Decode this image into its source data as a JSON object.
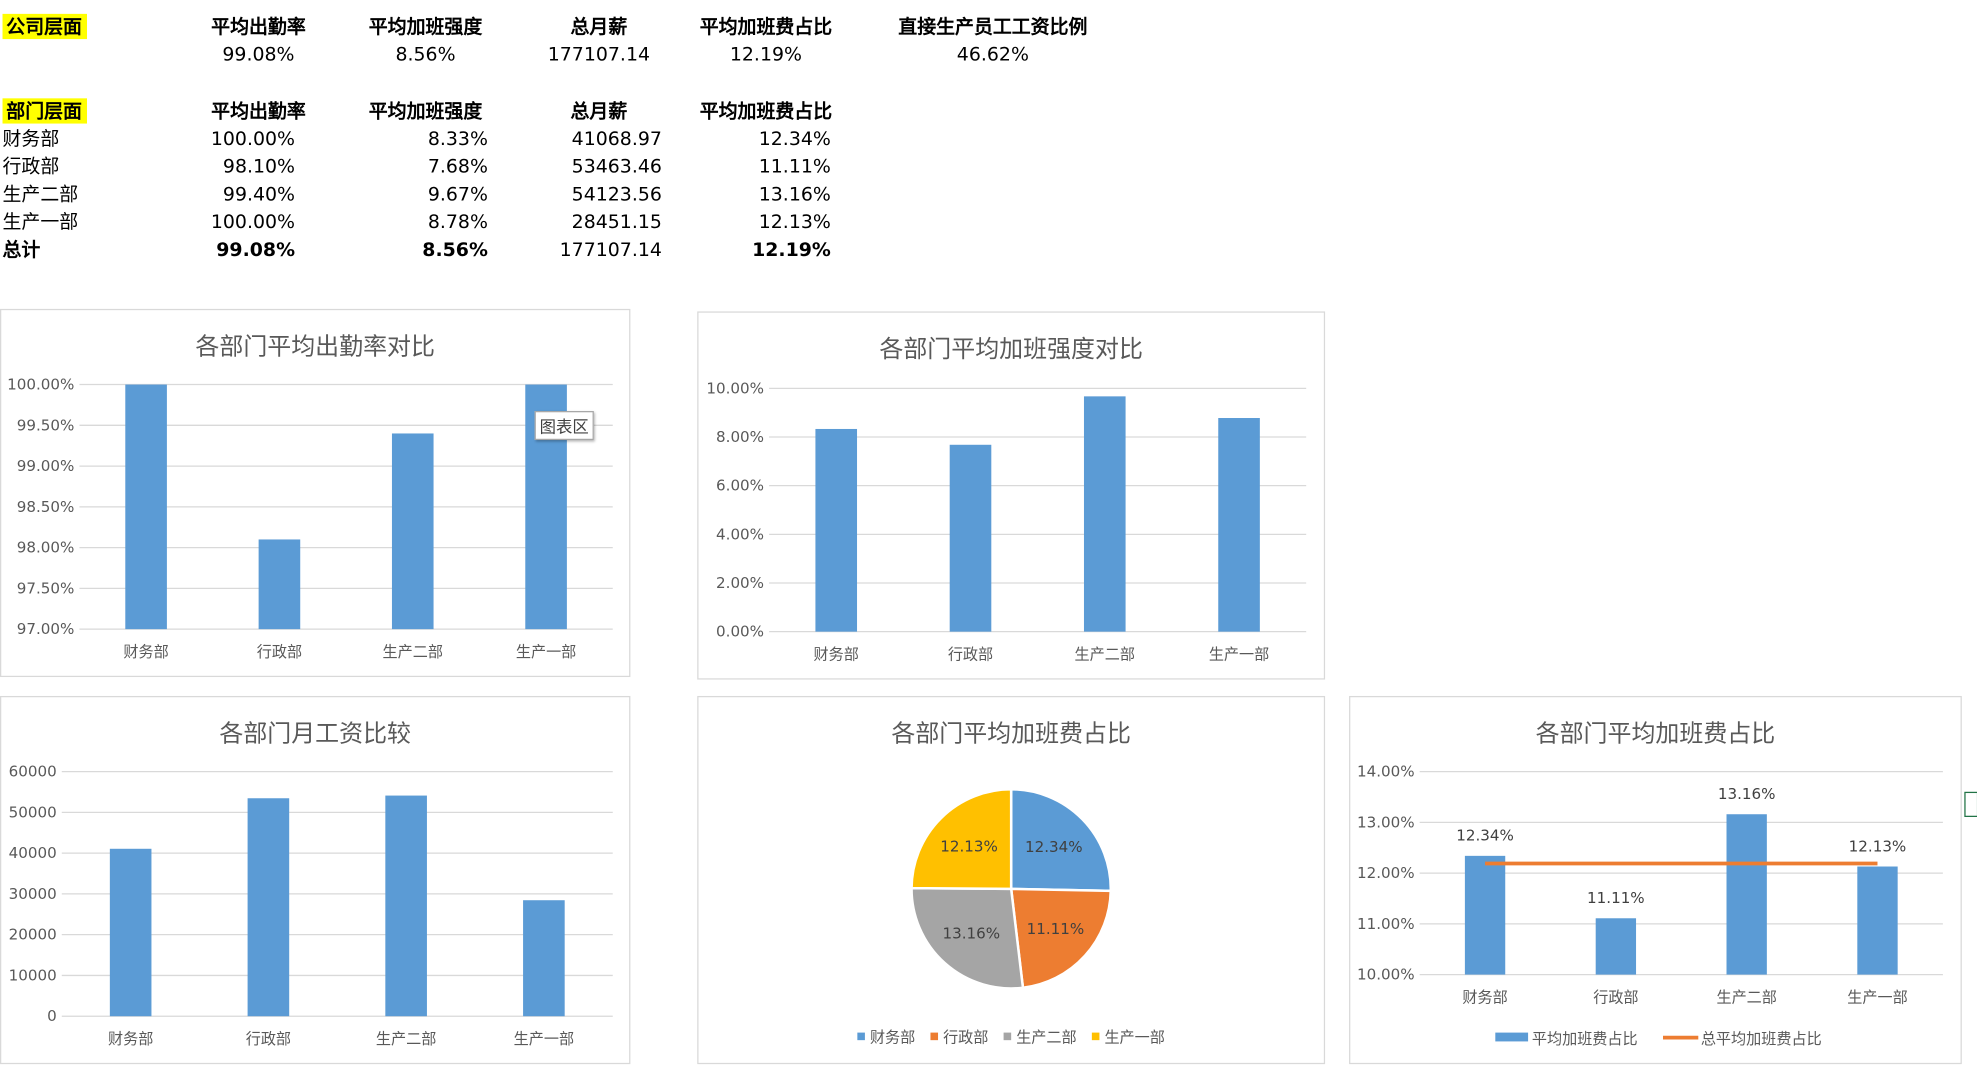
{
  "company": {
    "label": "公司层面",
    "headers": [
      "平均出勤率",
      "平均加班强度",
      "总月薪",
      "平均加班费占比",
      "直接生产员工工资比例"
    ],
    "values": [
      "99.08%",
      "8.56%",
      "177107.14",
      "12.19%",
      "46.62%"
    ]
  },
  "department": {
    "label": "部门层面",
    "headers": [
      "平均出勤率",
      "平均加班强度",
      "总月薪",
      "平均加班费占比"
    ],
    "rows": [
      {
        "name": "财务部",
        "cells": [
          "100.00%",
          "8.33%",
          "41068.97",
          "12.34%"
        ]
      },
      {
        "name": "行政部",
        "cells": [
          "98.10%",
          "7.68%",
          "53463.46",
          "11.11%"
        ]
      },
      {
        "name": "生产二部",
        "cells": [
          "99.40%",
          "9.67%",
          "54123.56",
          "13.16%"
        ]
      },
      {
        "name": "生产一部",
        "cells": [
          "100.00%",
          "8.78%",
          "28451.15",
          "12.13%"
        ]
      }
    ],
    "total": {
      "name": "总计",
      "cells": [
        "99.08%",
        "8.56%",
        "177107.14",
        "12.19%"
      ]
    }
  },
  "tooltip": "图表区",
  "colors": {
    "blue": "#5b9bd5",
    "orange": "#ed7d31",
    "gray": "#a5a5a5",
    "yellow": "#ffc000",
    "grid": "#d9d9d9",
    "axis_text": "#595959"
  },
  "chart_data": [
    {
      "id": "attendance",
      "type": "bar",
      "title": "各部门平均出勤率对比",
      "categories": [
        "财务部",
        "行政部",
        "生产二部",
        "生产一部"
      ],
      "values": [
        100.0,
        98.1,
        99.4,
        100.0
      ],
      "ylim": [
        97.0,
        100.0
      ],
      "yticks": [
        "97.00%",
        "97.50%",
        "98.00%",
        "98.50%",
        "99.00%",
        "99.50%",
        "100.00%"
      ],
      "grid": true
    },
    {
      "id": "overtime",
      "type": "bar",
      "title": "各部门平均加班强度对比",
      "categories": [
        "财务部",
        "行政部",
        "生产二部",
        "生产一部"
      ],
      "values": [
        8.33,
        7.68,
        9.67,
        8.78
      ],
      "ylim": [
        0,
        10
      ],
      "yticks": [
        "0.00%",
        "2.00%",
        "4.00%",
        "6.00%",
        "8.00%",
        "10.00%"
      ],
      "grid": true
    },
    {
      "id": "salary",
      "type": "bar",
      "title": "各部门月工资比较",
      "categories": [
        "财务部",
        "行政部",
        "生产二部",
        "生产一部"
      ],
      "values": [
        41068.97,
        53463.46,
        54123.56,
        28451.15
      ],
      "ylim": [
        0,
        60000
      ],
      "yticks": [
        "0",
        "10000",
        "20000",
        "30000",
        "40000",
        "50000",
        "60000"
      ],
      "grid": true
    },
    {
      "id": "pie",
      "type": "pie",
      "title": "各部门平均加班费占比",
      "categories": [
        "财务部",
        "行政部",
        "生产二部",
        "生产一部"
      ],
      "values": [
        12.34,
        11.11,
        13.16,
        12.13
      ],
      "labels": [
        "12.34%",
        "11.11%",
        "13.16%",
        "12.13%"
      ],
      "legend": "bottom"
    },
    {
      "id": "combo",
      "type": "bar",
      "title": "各部门平均加班费占比",
      "categories": [
        "财务部",
        "行政部",
        "生产二部",
        "生产一部"
      ],
      "series": [
        {
          "name": "平均加班费占比",
          "type": "bar",
          "values": [
            12.34,
            11.11,
            13.16,
            12.13
          ],
          "labels": [
            "12.34%",
            "11.11%",
            "13.16%",
            "12.13%"
          ]
        },
        {
          "name": "总平均加班费占比",
          "type": "line",
          "values": [
            12.19,
            12.19,
            12.19,
            12.19
          ]
        }
      ],
      "ylim": [
        10,
        14
      ],
      "yticks": [
        "10.00%",
        "11.00%",
        "12.00%",
        "13.00%",
        "14.00%"
      ],
      "legend": "bottom",
      "grid": true
    }
  ]
}
